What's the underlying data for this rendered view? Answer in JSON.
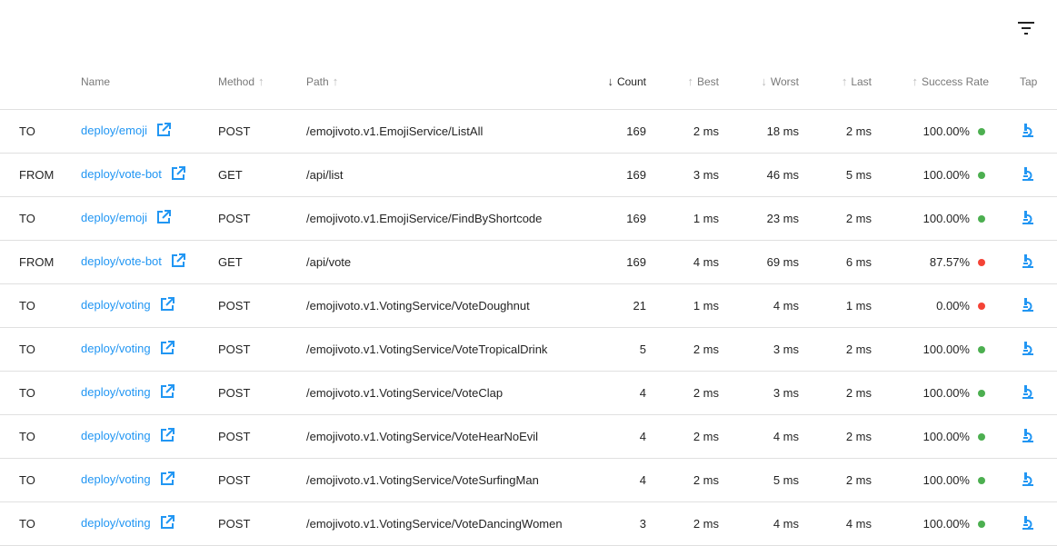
{
  "toolbar": {
    "filter_icon": "filter-list-icon"
  },
  "colors": {
    "link": "#2196f3",
    "success": "#4caf50",
    "failure": "#f44336"
  },
  "columns": {
    "direction": "",
    "name": "Name",
    "method": "Method",
    "path": "Path",
    "count": "Count",
    "best": "Best",
    "worst": "Worst",
    "last": "Last",
    "success_rate": "Success Rate",
    "tap": "Tap"
  },
  "sort": {
    "method": "↑",
    "path": "↑",
    "count": "↓",
    "best": "↑",
    "worst": "↓",
    "last": "↑",
    "success_rate": "↑",
    "active": "count"
  },
  "rows": [
    {
      "direction": "TO",
      "name": "deploy/emoji",
      "method": "POST",
      "path": "/emojivoto.v1.EmojiService/ListAll",
      "count": "169",
      "best": "2 ms",
      "worst": "18 ms",
      "last": "2 ms",
      "success_rate": "100.00%",
      "status": "success"
    },
    {
      "direction": "FROM",
      "name": "deploy/vote-bot",
      "method": "GET",
      "path": "/api/list",
      "count": "169",
      "best": "3 ms",
      "worst": "46 ms",
      "last": "5 ms",
      "success_rate": "100.00%",
      "status": "success"
    },
    {
      "direction": "TO",
      "name": "deploy/emoji",
      "method": "POST",
      "path": "/emojivoto.v1.EmojiService/FindByShortcode",
      "count": "169",
      "best": "1 ms",
      "worst": "23 ms",
      "last": "2 ms",
      "success_rate": "100.00%",
      "status": "success"
    },
    {
      "direction": "FROM",
      "name": "deploy/vote-bot",
      "method": "GET",
      "path": "/api/vote",
      "count": "169",
      "best": "4 ms",
      "worst": "69 ms",
      "last": "6 ms",
      "success_rate": "87.57%",
      "status": "failure"
    },
    {
      "direction": "TO",
      "name": "deploy/voting",
      "method": "POST",
      "path": "/emojivoto.v1.VotingService/VoteDoughnut",
      "count": "21",
      "best": "1 ms",
      "worst": "4 ms",
      "last": "1 ms",
      "success_rate": "0.00%",
      "status": "failure"
    },
    {
      "direction": "TO",
      "name": "deploy/voting",
      "method": "POST",
      "path": "/emojivoto.v1.VotingService/VoteTropicalDrink",
      "count": "5",
      "best": "2 ms",
      "worst": "3 ms",
      "last": "2 ms",
      "success_rate": "100.00%",
      "status": "success"
    },
    {
      "direction": "TO",
      "name": "deploy/voting",
      "method": "POST",
      "path": "/emojivoto.v1.VotingService/VoteClap",
      "count": "4",
      "best": "2 ms",
      "worst": "3 ms",
      "last": "2 ms",
      "success_rate": "100.00%",
      "status": "success"
    },
    {
      "direction": "TO",
      "name": "deploy/voting",
      "method": "POST",
      "path": "/emojivoto.v1.VotingService/VoteHearNoEvil",
      "count": "4",
      "best": "2 ms",
      "worst": "4 ms",
      "last": "2 ms",
      "success_rate": "100.00%",
      "status": "success"
    },
    {
      "direction": "TO",
      "name": "deploy/voting",
      "method": "POST",
      "path": "/emojivoto.v1.VotingService/VoteSurfingMan",
      "count": "4",
      "best": "2 ms",
      "worst": "5 ms",
      "last": "2 ms",
      "success_rate": "100.00%",
      "status": "success"
    },
    {
      "direction": "TO",
      "name": "deploy/voting",
      "method": "POST",
      "path": "/emojivoto.v1.VotingService/VoteDancingWomen",
      "count": "3",
      "best": "2 ms",
      "worst": "4 ms",
      "last": "4 ms",
      "success_rate": "100.00%",
      "status": "success"
    }
  ]
}
